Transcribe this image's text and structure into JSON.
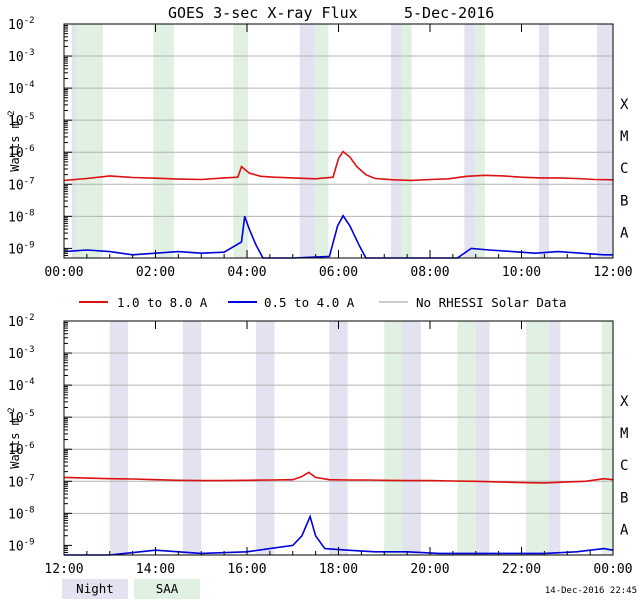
{
  "title": "GOES 3-sec X-ray Flux",
  "date": "5-Dec-2016",
  "ylabel": "Watts m",
  "ylabel_exp": "-2",
  "timestamp": "14-Dec-2016 22:45",
  "colors": {
    "long": "#dd1111",
    "short": "#0000dd",
    "norhessi": "#999999",
    "night": "#e2e2f0",
    "saa": "#e0f0e2",
    "grid": "#b4b4b4"
  },
  "legend": {
    "long": "1.0 to 8.0 A",
    "short": "0.5 to 4.0 A",
    "norhessi": "No RHESSI Solar Data",
    "night": "Night",
    "saa": "SAA"
  },
  "chart_data": [
    {
      "type": "line",
      "panel": "top",
      "xlim": [
        0,
        12
      ],
      "ylim_log10": [
        -9.3,
        -2
      ],
      "x_ticks": [
        "00:00",
        "02:00",
        "04:00",
        "06:00",
        "08:00",
        "10:00",
        "12:00"
      ],
      "y_ticks": [
        {
          "base": "10",
          "exp": "-2"
        },
        {
          "base": "10",
          "exp": "-3"
        },
        {
          "base": "10",
          "exp": "-4"
        },
        {
          "base": "10",
          "exp": "-5"
        },
        {
          "base": "10",
          "exp": "-6"
        },
        {
          "base": "10",
          "exp": "-7"
        },
        {
          "base": "10",
          "exp": "-8"
        },
        {
          "base": "10",
          "exp": "-9"
        }
      ],
      "flare_classes": [
        "X",
        "M",
        "C",
        "B",
        "A"
      ],
      "night_intervals": [
        [
          0.17,
          0.64
        ],
        [
          5.15,
          5.48
        ],
        [
          7.15,
          7.38
        ],
        [
          8.75,
          8.98
        ],
        [
          10.38,
          10.6
        ],
        [
          11.65,
          12.0
        ]
      ],
      "saa_intervals": [
        [
          0.26,
          0.85
        ],
        [
          1.95,
          2.4
        ],
        [
          3.7,
          4.02
        ],
        [
          5.48,
          5.78
        ],
        [
          7.38,
          7.6
        ],
        [
          8.98,
          9.2
        ]
      ],
      "long_series": [
        [
          0.0,
          -6.88
        ],
        [
          0.5,
          -6.82
        ],
        [
          1.0,
          -6.74
        ],
        [
          1.5,
          -6.79
        ],
        [
          2.0,
          -6.81
        ],
        [
          2.5,
          -6.84
        ],
        [
          3.0,
          -6.85
        ],
        [
          3.5,
          -6.8
        ],
        [
          3.8,
          -6.78
        ],
        [
          3.88,
          -6.45
        ],
        [
          4.05,
          -6.65
        ],
        [
          4.3,
          -6.75
        ],
        [
          4.6,
          -6.78
        ],
        [
          5.0,
          -6.8
        ],
        [
          5.5,
          -6.83
        ],
        [
          5.88,
          -6.78
        ],
        [
          6.0,
          -6.2
        ],
        [
          6.1,
          -5.98
        ],
        [
          6.25,
          -6.15
        ],
        [
          6.4,
          -6.45
        ],
        [
          6.6,
          -6.7
        ],
        [
          6.8,
          -6.82
        ],
        [
          7.2,
          -6.86
        ],
        [
          7.6,
          -6.88
        ],
        [
          8.0,
          -6.85
        ],
        [
          8.4,
          -6.83
        ],
        [
          8.8,
          -6.75
        ],
        [
          9.2,
          -6.72
        ],
        [
          9.6,
          -6.74
        ],
        [
          10.0,
          -6.78
        ],
        [
          10.4,
          -6.8
        ],
        [
          10.8,
          -6.8
        ],
        [
          11.2,
          -6.82
        ],
        [
          11.6,
          -6.85
        ],
        [
          12.0,
          -6.86
        ]
      ],
      "short_series": [
        [
          0.0,
          -9.1
        ],
        [
          0.5,
          -9.05
        ],
        [
          1.0,
          -9.1
        ],
        [
          1.5,
          -9.2
        ],
        [
          2.0,
          -9.15
        ],
        [
          2.5,
          -9.1
        ],
        [
          3.0,
          -9.15
        ],
        [
          3.5,
          -9.12
        ],
        [
          3.88,
          -8.8
        ],
        [
          3.95,
          -8.0
        ],
        [
          4.05,
          -8.4
        ],
        [
          4.2,
          -8.9
        ],
        [
          4.35,
          -9.3
        ],
        [
          5.0,
          -9.3
        ],
        [
          5.8,
          -9.25
        ],
        [
          5.98,
          -8.3
        ],
        [
          6.1,
          -7.98
        ],
        [
          6.25,
          -8.3
        ],
        [
          6.45,
          -8.9
        ],
        [
          6.6,
          -9.3
        ],
        [
          7.2,
          -9.3
        ],
        [
          8.0,
          -9.3
        ],
        [
          8.6,
          -9.3
        ],
        [
          8.9,
          -9.0
        ],
        [
          9.3,
          -9.05
        ],
        [
          9.8,
          -9.1
        ],
        [
          10.3,
          -9.15
        ],
        [
          10.8,
          -9.1
        ],
        [
          11.3,
          -9.15
        ],
        [
          11.8,
          -9.2
        ],
        [
          12.0,
          -9.2
        ]
      ]
    },
    {
      "type": "line",
      "panel": "bottom",
      "xlim": [
        12,
        24
      ],
      "ylim_log10": [
        -9.3,
        -2
      ],
      "x_ticks": [
        "12:00",
        "14:00",
        "16:00",
        "18:00",
        "20:00",
        "22:00",
        "00:00"
      ],
      "y_ticks": [
        {
          "base": "10",
          "exp": "-2"
        },
        {
          "base": "10",
          "exp": "-3"
        },
        {
          "base": "10",
          "exp": "-4"
        },
        {
          "base": "10",
          "exp": "-5"
        },
        {
          "base": "10",
          "exp": "-6"
        },
        {
          "base": "10",
          "exp": "-7"
        },
        {
          "base": "10",
          "exp": "-8"
        },
        {
          "base": "10",
          "exp": "-9"
        }
      ],
      "flare_classes": [
        "X",
        "M",
        "C",
        "B",
        "A"
      ],
      "night_intervals": [
        [
          13.0,
          13.4
        ],
        [
          14.6,
          15.0
        ],
        [
          16.2,
          16.6
        ],
        [
          17.8,
          18.2
        ],
        [
          19.4,
          19.8
        ],
        [
          21.0,
          21.3
        ],
        [
          22.6,
          22.85
        ]
      ],
      "saa_intervals": [
        [
          19.0,
          19.4
        ],
        [
          20.6,
          21.0
        ],
        [
          22.1,
          22.6
        ],
        [
          23.75,
          24.0
        ]
      ],
      "long_series": [
        [
          12.0,
          -6.88
        ],
        [
          12.5,
          -6.9
        ],
        [
          13.0,
          -6.92
        ],
        [
          13.5,
          -6.93
        ],
        [
          14.0,
          -6.95
        ],
        [
          14.5,
          -6.97
        ],
        [
          15.0,
          -6.98
        ],
        [
          15.5,
          -6.98
        ],
        [
          16.0,
          -6.97
        ],
        [
          16.5,
          -6.96
        ],
        [
          17.0,
          -6.95
        ],
        [
          17.2,
          -6.85
        ],
        [
          17.35,
          -6.72
        ],
        [
          17.5,
          -6.88
        ],
        [
          17.8,
          -6.95
        ],
        [
          18.2,
          -6.96
        ],
        [
          18.6,
          -6.96
        ],
        [
          19.0,
          -6.97
        ],
        [
          19.5,
          -6.98
        ],
        [
          20.0,
          -6.98
        ],
        [
          20.5,
          -6.99
        ],
        [
          21.0,
          -7.0
        ],
        [
          21.5,
          -7.02
        ],
        [
          22.0,
          -7.04
        ],
        [
          22.5,
          -7.05
        ],
        [
          23.0,
          -7.02
        ],
        [
          23.4,
          -7.0
        ],
        [
          23.8,
          -6.92
        ],
        [
          24.0,
          -6.95
        ]
      ],
      "short_series": [
        [
          12.0,
          -9.3
        ],
        [
          13.0,
          -9.3
        ],
        [
          14.0,
          -9.15
        ],
        [
          14.5,
          -9.2
        ],
        [
          15.0,
          -9.25
        ],
        [
          16.0,
          -9.2
        ],
        [
          16.5,
          -9.1
        ],
        [
          17.0,
          -9.0
        ],
        [
          17.2,
          -8.7
        ],
        [
          17.38,
          -8.1
        ],
        [
          17.5,
          -8.7
        ],
        [
          17.7,
          -9.1
        ],
        [
          18.2,
          -9.15
        ],
        [
          18.8,
          -9.2
        ],
        [
          19.5,
          -9.2
        ],
        [
          20.2,
          -9.25
        ],
        [
          21.0,
          -9.25
        ],
        [
          21.8,
          -9.25
        ],
        [
          22.5,
          -9.25
        ],
        [
          23.2,
          -9.2
        ],
        [
          23.8,
          -9.1
        ],
        [
          24.0,
          -9.15
        ]
      ]
    }
  ]
}
